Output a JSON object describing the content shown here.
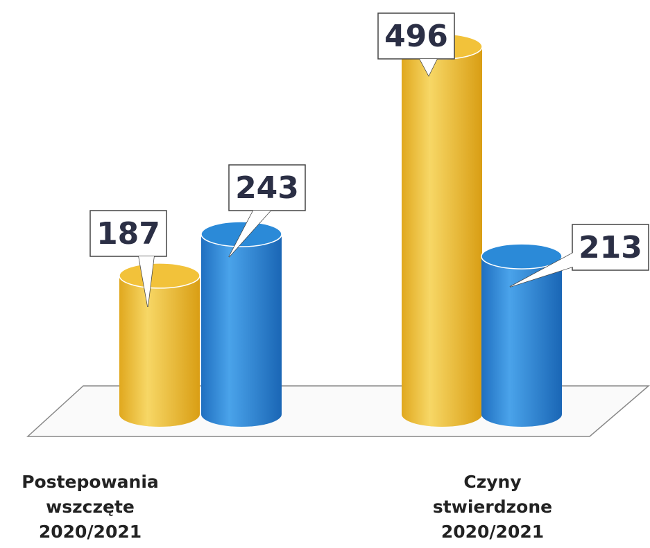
{
  "chart_data": {
    "type": "bar3d",
    "categories": [
      "Postepowania\nwszczęte\n2020/2021",
      "Czyny\nstwierdzone\n2020/2021"
    ],
    "series": [
      {
        "color": "#f2c23a",
        "values": [
          187,
          496
        ]
      },
      {
        "color": "#2b8ad8",
        "values": [
          243,
          213
        ]
      }
    ]
  }
}
